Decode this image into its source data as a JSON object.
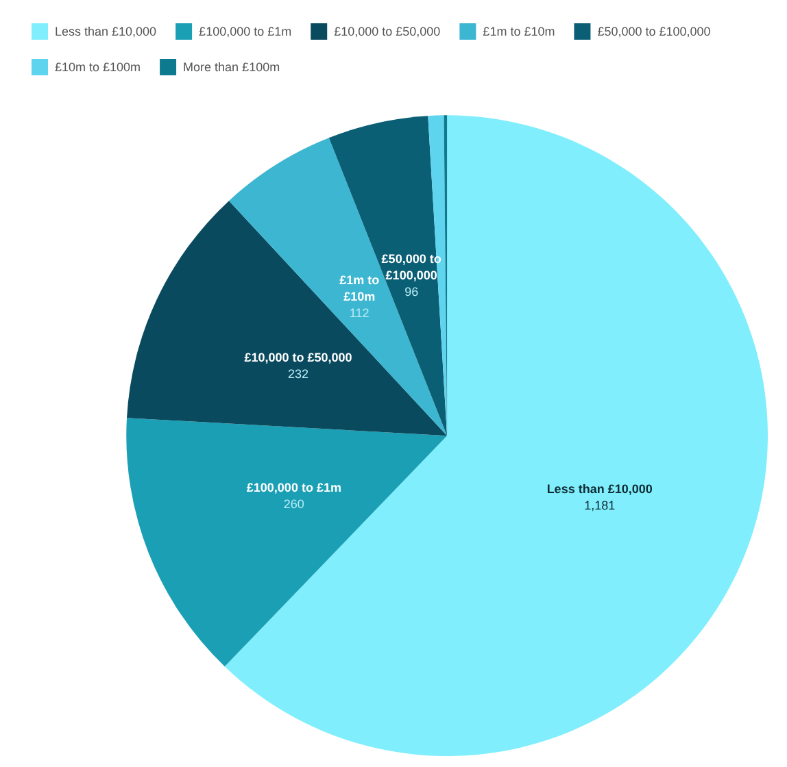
{
  "chart_data": {
    "type": "pie",
    "categories": [
      "Less than £10,000",
      "£100,000 to £1m",
      "£10,000 to £50,000",
      "£1m to £10m",
      "£50,000 to £100,000",
      "£10m to £100m",
      "More than £100m"
    ],
    "values": [
      1181,
      260,
      232,
      112,
      96,
      15,
      3
    ],
    "value_labels": [
      "1,181",
      "260",
      "232",
      "112",
      "96",
      null,
      null
    ],
    "colors": [
      "#80eefc",
      "#1a9fb5",
      "#0a4a5e",
      "#3cb6d1",
      "#0b5f75",
      "#5fd4ee",
      "#0e7a8f"
    ],
    "legend": "top left"
  }
}
